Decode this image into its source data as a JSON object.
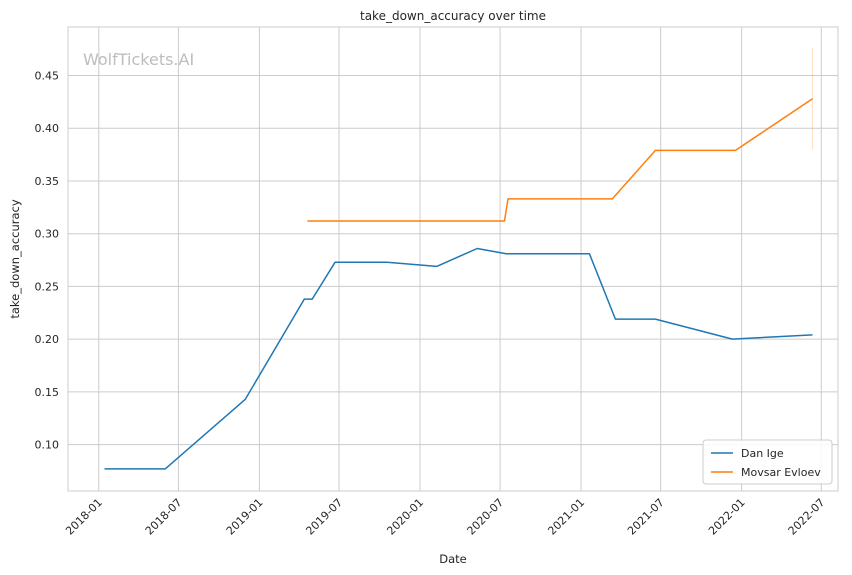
{
  "watermark": "WolfTickets.AI",
  "chart_data": {
    "type": "line",
    "title": "take_down_accuracy over time",
    "xlabel": "Date",
    "ylabel": "take_down_accuracy",
    "x_ticks": [
      "2018-01",
      "2018-07",
      "2019-01",
      "2019-07",
      "2020-01",
      "2020-07",
      "2021-01",
      "2021-07",
      "2022-01",
      "2022-07"
    ],
    "y_ticks": [
      "0.10",
      "0.15",
      "0.20",
      "0.25",
      "0.30",
      "0.35",
      "0.40",
      "0.45"
    ],
    "xlim": [
      "2017-10-23",
      "2022-08-08"
    ],
    "ylim": [
      0.056,
      0.496
    ],
    "grid": true,
    "legend_position": "lower-right",
    "series": [
      {
        "name": "Dan Ige",
        "color": "#1f77b4",
        "points": [
          {
            "x": "2018-01-14",
            "y": 0.077
          },
          {
            "x": "2018-06-01",
            "y": 0.077
          },
          {
            "x": "2018-11-30",
            "y": 0.143
          },
          {
            "x": "2019-04-13",
            "y": 0.238
          },
          {
            "x": "2019-05-01",
            "y": 0.238
          },
          {
            "x": "2019-06-22",
            "y": 0.273
          },
          {
            "x": "2019-10-18",
            "y": 0.273
          },
          {
            "x": "2020-02-08",
            "y": 0.269
          },
          {
            "x": "2020-05-10",
            "y": 0.286
          },
          {
            "x": "2020-07-15",
            "y": 0.281
          },
          {
            "x": "2021-01-20",
            "y": 0.281
          },
          {
            "x": "2021-03-20",
            "y": 0.219
          },
          {
            "x": "2021-06-19",
            "y": 0.219
          },
          {
            "x": "2021-12-11",
            "y": 0.2
          },
          {
            "x": "2022-06-11",
            "y": 0.204
          }
        ]
      },
      {
        "name": "Movsar Evloev",
        "color": "#ff7f0e",
        "points": [
          {
            "x": "2019-04-20",
            "y": 0.312
          },
          {
            "x": "2020-07-11",
            "y": 0.312
          },
          {
            "x": "2020-07-19",
            "y": 0.333
          },
          {
            "x": "2021-03-13",
            "y": 0.333
          },
          {
            "x": "2021-06-19",
            "y": 0.379
          },
          {
            "x": "2021-12-18",
            "y": 0.379
          },
          {
            "x": "2022-06-11",
            "y": 0.428
          }
        ],
        "error_bar": {
          "x": "2022-06-11",
          "low": 0.38,
          "high": 0.476
        }
      }
    ]
  }
}
